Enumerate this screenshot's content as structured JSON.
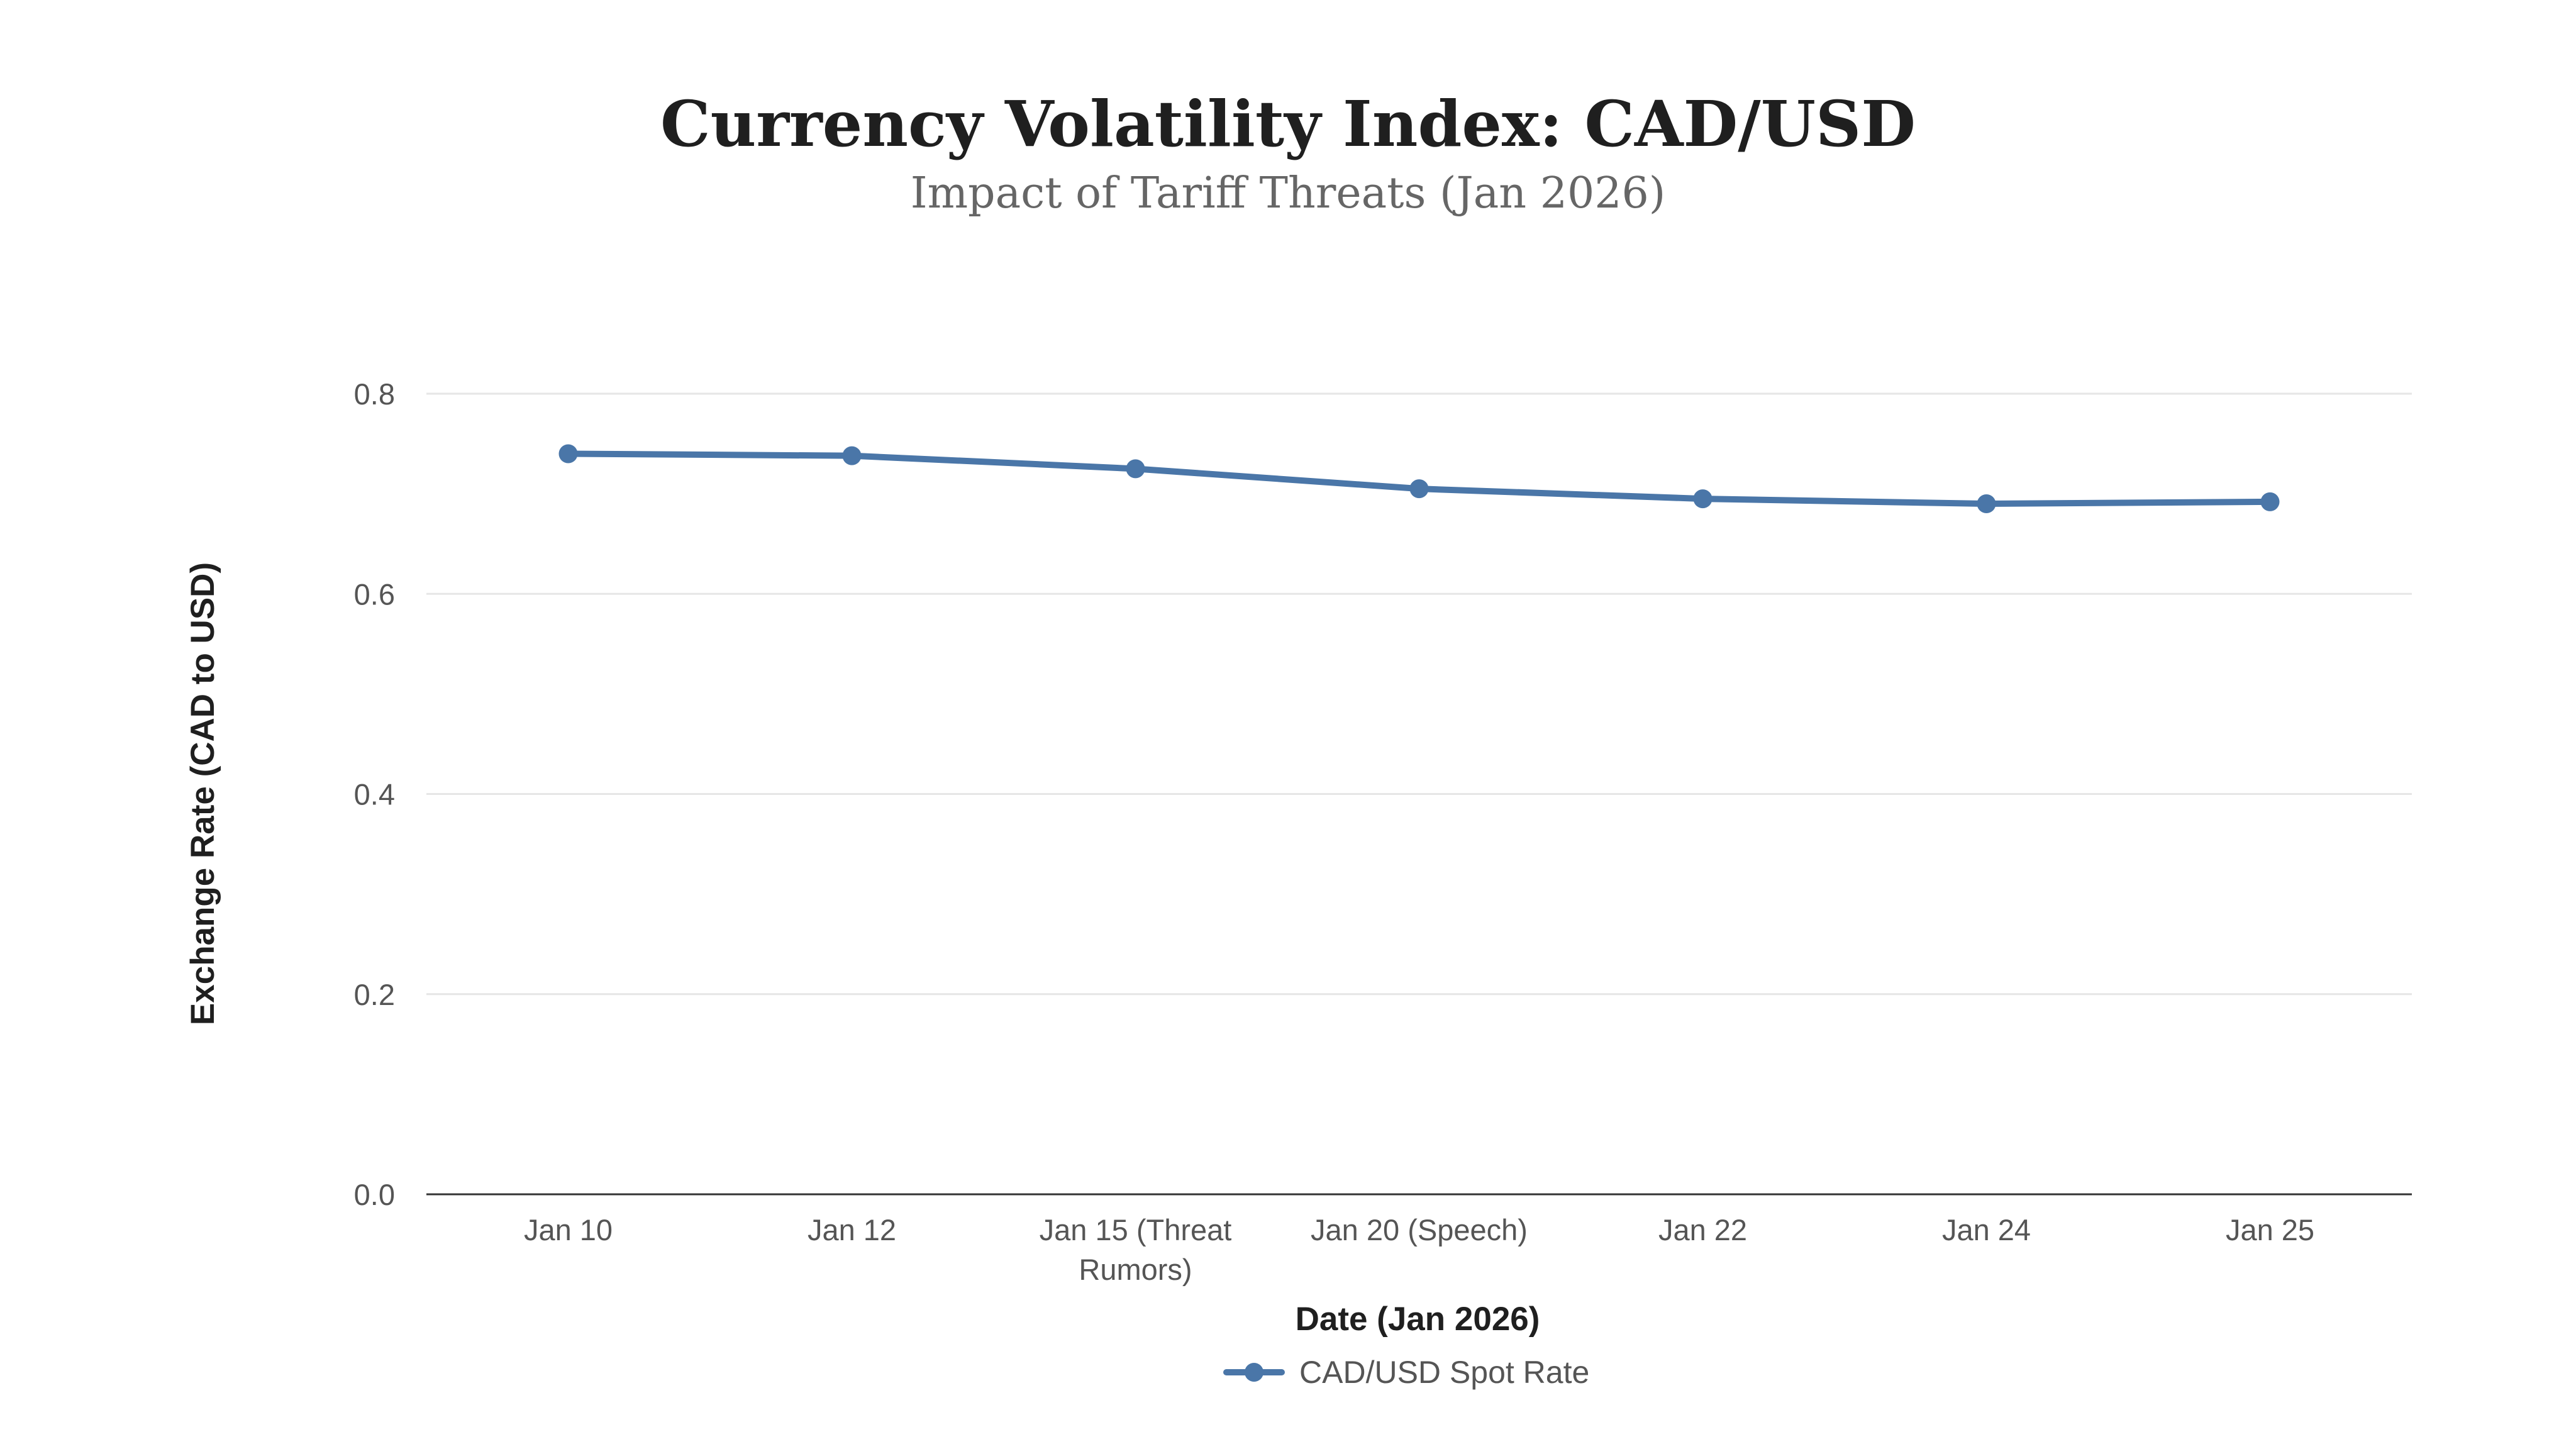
{
  "chart_data": {
    "type": "line",
    "title": "Currency Volatility Index: CAD/USD",
    "subtitle": "Impact of Tariff Threats (Jan 2026)",
    "xlabel": "Date (Jan 2026)",
    "ylabel": "Exchange Rate (CAD to USD)",
    "categories": [
      [
        "Jan 10"
      ],
      [
        "Jan 12"
      ],
      [
        "Jan 15 (Threat",
        "Rumors)"
      ],
      [
        "Jan 20 (Speech)"
      ],
      [
        "Jan 22"
      ],
      [
        "Jan 24"
      ],
      [
        "Jan 25"
      ]
    ],
    "ylim": [
      0,
      0.8
    ],
    "yticks": [
      "0.0",
      "0.2",
      "0.4",
      "0.6",
      "0.8"
    ],
    "ytick_values": [
      0,
      0.2,
      0.4,
      0.6,
      0.8
    ],
    "grid": true,
    "legend_position": "bottom-center",
    "series": [
      {
        "name": "CAD/USD Spot Rate",
        "color": "#4a76a8",
        "values": [
          0.74,
          0.738,
          0.725,
          0.705,
          0.695,
          0.69,
          0.692
        ]
      }
    ]
  }
}
